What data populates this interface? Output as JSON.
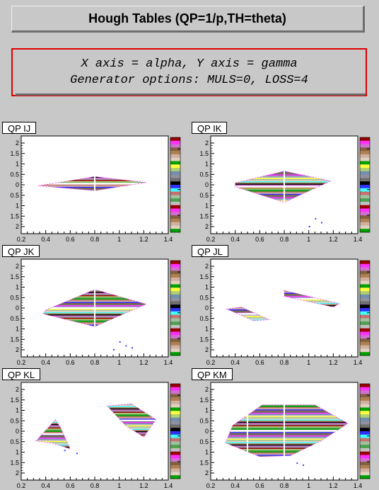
{
  "title": "Hough Tables (QP=1/p,TH=theta)",
  "info": {
    "line1": "X axis = alpha, Y axis = gamma",
    "line2": "Generator options: MULS=0, LOSS=4"
  },
  "palette": [
    "#000000",
    "#9a0000",
    "#00a000",
    "#3030ff",
    "#ff30ff",
    "#ffff40",
    "#40ffff",
    "#d070d0",
    "#b0d070",
    "#c87070",
    "#806040",
    "#7090b0",
    "#a0c0a0",
    "#b08050",
    "#9090a0",
    "#50a050",
    "#d0b0a0",
    "#707070",
    "#c0c0c0",
    "#e0d0c0"
  ],
  "chart_data": [
    {
      "type": "heatmap",
      "title": "QP_IJ",
      "xlim": [
        0.2,
        1.4
      ],
      "ylim": [
        -2.5,
        2.5
      ],
      "xticks": [
        "0.2",
        "0.4",
        "0.6",
        "0.8",
        "1",
        "1.2",
        "1.4"
      ],
      "yticks": [
        "2",
        "1.5",
        "1",
        "0.5",
        "0",
        "0.5",
        "1",
        "1.5",
        "2"
      ],
      "regions": [
        {
          "points": [
            [
              0.34,
              -0.05
            ],
            [
              0.8,
              0.42
            ],
            [
              1.22,
              0.12
            ],
            [
              0.8,
              -0.3
            ]
          ]
        }
      ],
      "vlines": [
        0.8
      ],
      "scatter": []
    },
    {
      "type": "heatmap",
      "title": "QP_IK",
      "xlim": [
        0.2,
        1.4
      ],
      "ylim": [
        -2.5,
        2.5
      ],
      "xticks": [
        "0.2",
        "0.4",
        "0.6",
        "0.8",
        "1",
        "1.2",
        "1.4"
      ],
      "yticks": [
        "2",
        "1.5",
        "1",
        "0.5",
        "0",
        "0.5",
        "1",
        "1.5",
        "2"
      ],
      "regions": [
        {
          "points": [
            [
              0.4,
              0.1
            ],
            [
              0.8,
              0.7
            ],
            [
              1.18,
              0.2
            ],
            [
              0.8,
              -0.9
            ],
            [
              0.4,
              -0.1
            ]
          ]
        }
      ],
      "vlines": [
        0.8
      ],
      "scatter": [
        [
          1.05,
          -1.7
        ],
        [
          1.1,
          -1.9
        ],
        [
          1.0,
          -2.1
        ]
      ]
    },
    {
      "type": "heatmap",
      "title": "QP_JK",
      "xlim": [
        0.2,
        1.4
      ],
      "ylim": [
        -2.5,
        2.5
      ],
      "xticks": [
        "0.2",
        "0.4",
        "0.6",
        "0.8",
        "1",
        "1.2",
        "1.4"
      ],
      "yticks": [
        "2",
        "1.5",
        "1",
        "0.5",
        "0",
        "0.5",
        "1",
        "1.5",
        "2"
      ],
      "regions": [
        {
          "points": [
            [
              0.4,
              -0.1
            ],
            [
              0.8,
              0.95
            ],
            [
              1.22,
              0.2
            ],
            [
              0.8,
              -0.95
            ],
            [
              0.38,
              -0.3
            ]
          ]
        }
      ],
      "vlines": [
        0.8
      ],
      "scatter": [
        [
          1.0,
          -1.7
        ],
        [
          1.05,
          -1.9
        ],
        [
          1.1,
          -2.0
        ],
        [
          0.95,
          -2.1
        ]
      ]
    },
    {
      "type": "heatmap",
      "title": "QP_JL",
      "xlim": [
        0.2,
        1.4
      ],
      "ylim": [
        -2.5,
        2.5
      ],
      "xticks": [
        "0.2",
        "0.4",
        "0.6",
        "0.8",
        "1",
        "1.2",
        "1.4"
      ],
      "yticks": [
        "2",
        "1.5",
        "1",
        "0.5",
        "0",
        "0.5",
        "1",
        "1.5",
        "2"
      ],
      "regions": [
        {
          "points": [
            [
              0.8,
              0.9
            ],
            [
              1.25,
              0.22
            ],
            [
              1.2,
              0.05
            ],
            [
              0.8,
              0.6
            ]
          ]
        },
        {
          "points": [
            [
              0.33,
              -0.05
            ],
            [
              0.45,
              0.05
            ],
            [
              0.68,
              -0.6
            ],
            [
              0.55,
              -0.65
            ]
          ]
        }
      ],
      "vlines": [],
      "scatter": []
    },
    {
      "type": "heatmap",
      "title": "QP_KL",
      "xlim": [
        0.2,
        1.4
      ],
      "ylim": [
        -2.5,
        2.5
      ],
      "xticks": [
        "0.2",
        "0.4",
        "0.6",
        "0.8",
        "1",
        "1.2",
        "1.4"
      ],
      "yticks": [
        "2",
        "1.5",
        "1",
        "0.5",
        "0",
        "0.5",
        "1",
        "1.5",
        "2"
      ],
      "regions": [
        {
          "points": [
            [
              0.9,
              1.3
            ],
            [
              1.1,
              1.4
            ],
            [
              1.3,
              0.6
            ],
            [
              1.2,
              -0.3
            ],
            [
              1.05,
              0.3
            ]
          ]
        },
        {
          "points": [
            [
              0.32,
              -0.5
            ],
            [
              0.48,
              0.6
            ],
            [
              0.52,
              0.2
            ],
            [
              0.6,
              -0.9
            ],
            [
              0.45,
              -0.6
            ]
          ]
        }
      ],
      "vlines": [],
      "scatter": [
        [
          0.55,
          -0.95
        ],
        [
          0.65,
          -1.1
        ]
      ]
    },
    {
      "type": "heatmap",
      "title": "QP_KM",
      "xlim": [
        0.2,
        1.4
      ],
      "ylim": [
        -2.5,
        2.5
      ],
      "xticks": [
        "0.2",
        "0.4",
        "0.6",
        "0.8",
        "1",
        "1.2",
        "1.4"
      ],
      "yticks": [
        "2",
        "1.5",
        "1",
        "0.5",
        "0",
        "0.5",
        "1",
        "1.5",
        "2"
      ],
      "regions": [
        {
          "points": [
            [
              0.38,
              0.3
            ],
            [
              0.62,
              1.35
            ],
            [
              1.05,
              1.35
            ],
            [
              1.32,
              0.4
            ],
            [
              1.1,
              -0.5
            ],
            [
              0.85,
              -1.25
            ],
            [
              0.6,
              -1.3
            ],
            [
              0.32,
              -0.6
            ]
          ]
        }
      ],
      "vlines": [
        0.5,
        0.8
      ],
      "scatter": [
        [
          0.9,
          -1.6
        ],
        [
          0.95,
          -1.7
        ]
      ]
    }
  ]
}
